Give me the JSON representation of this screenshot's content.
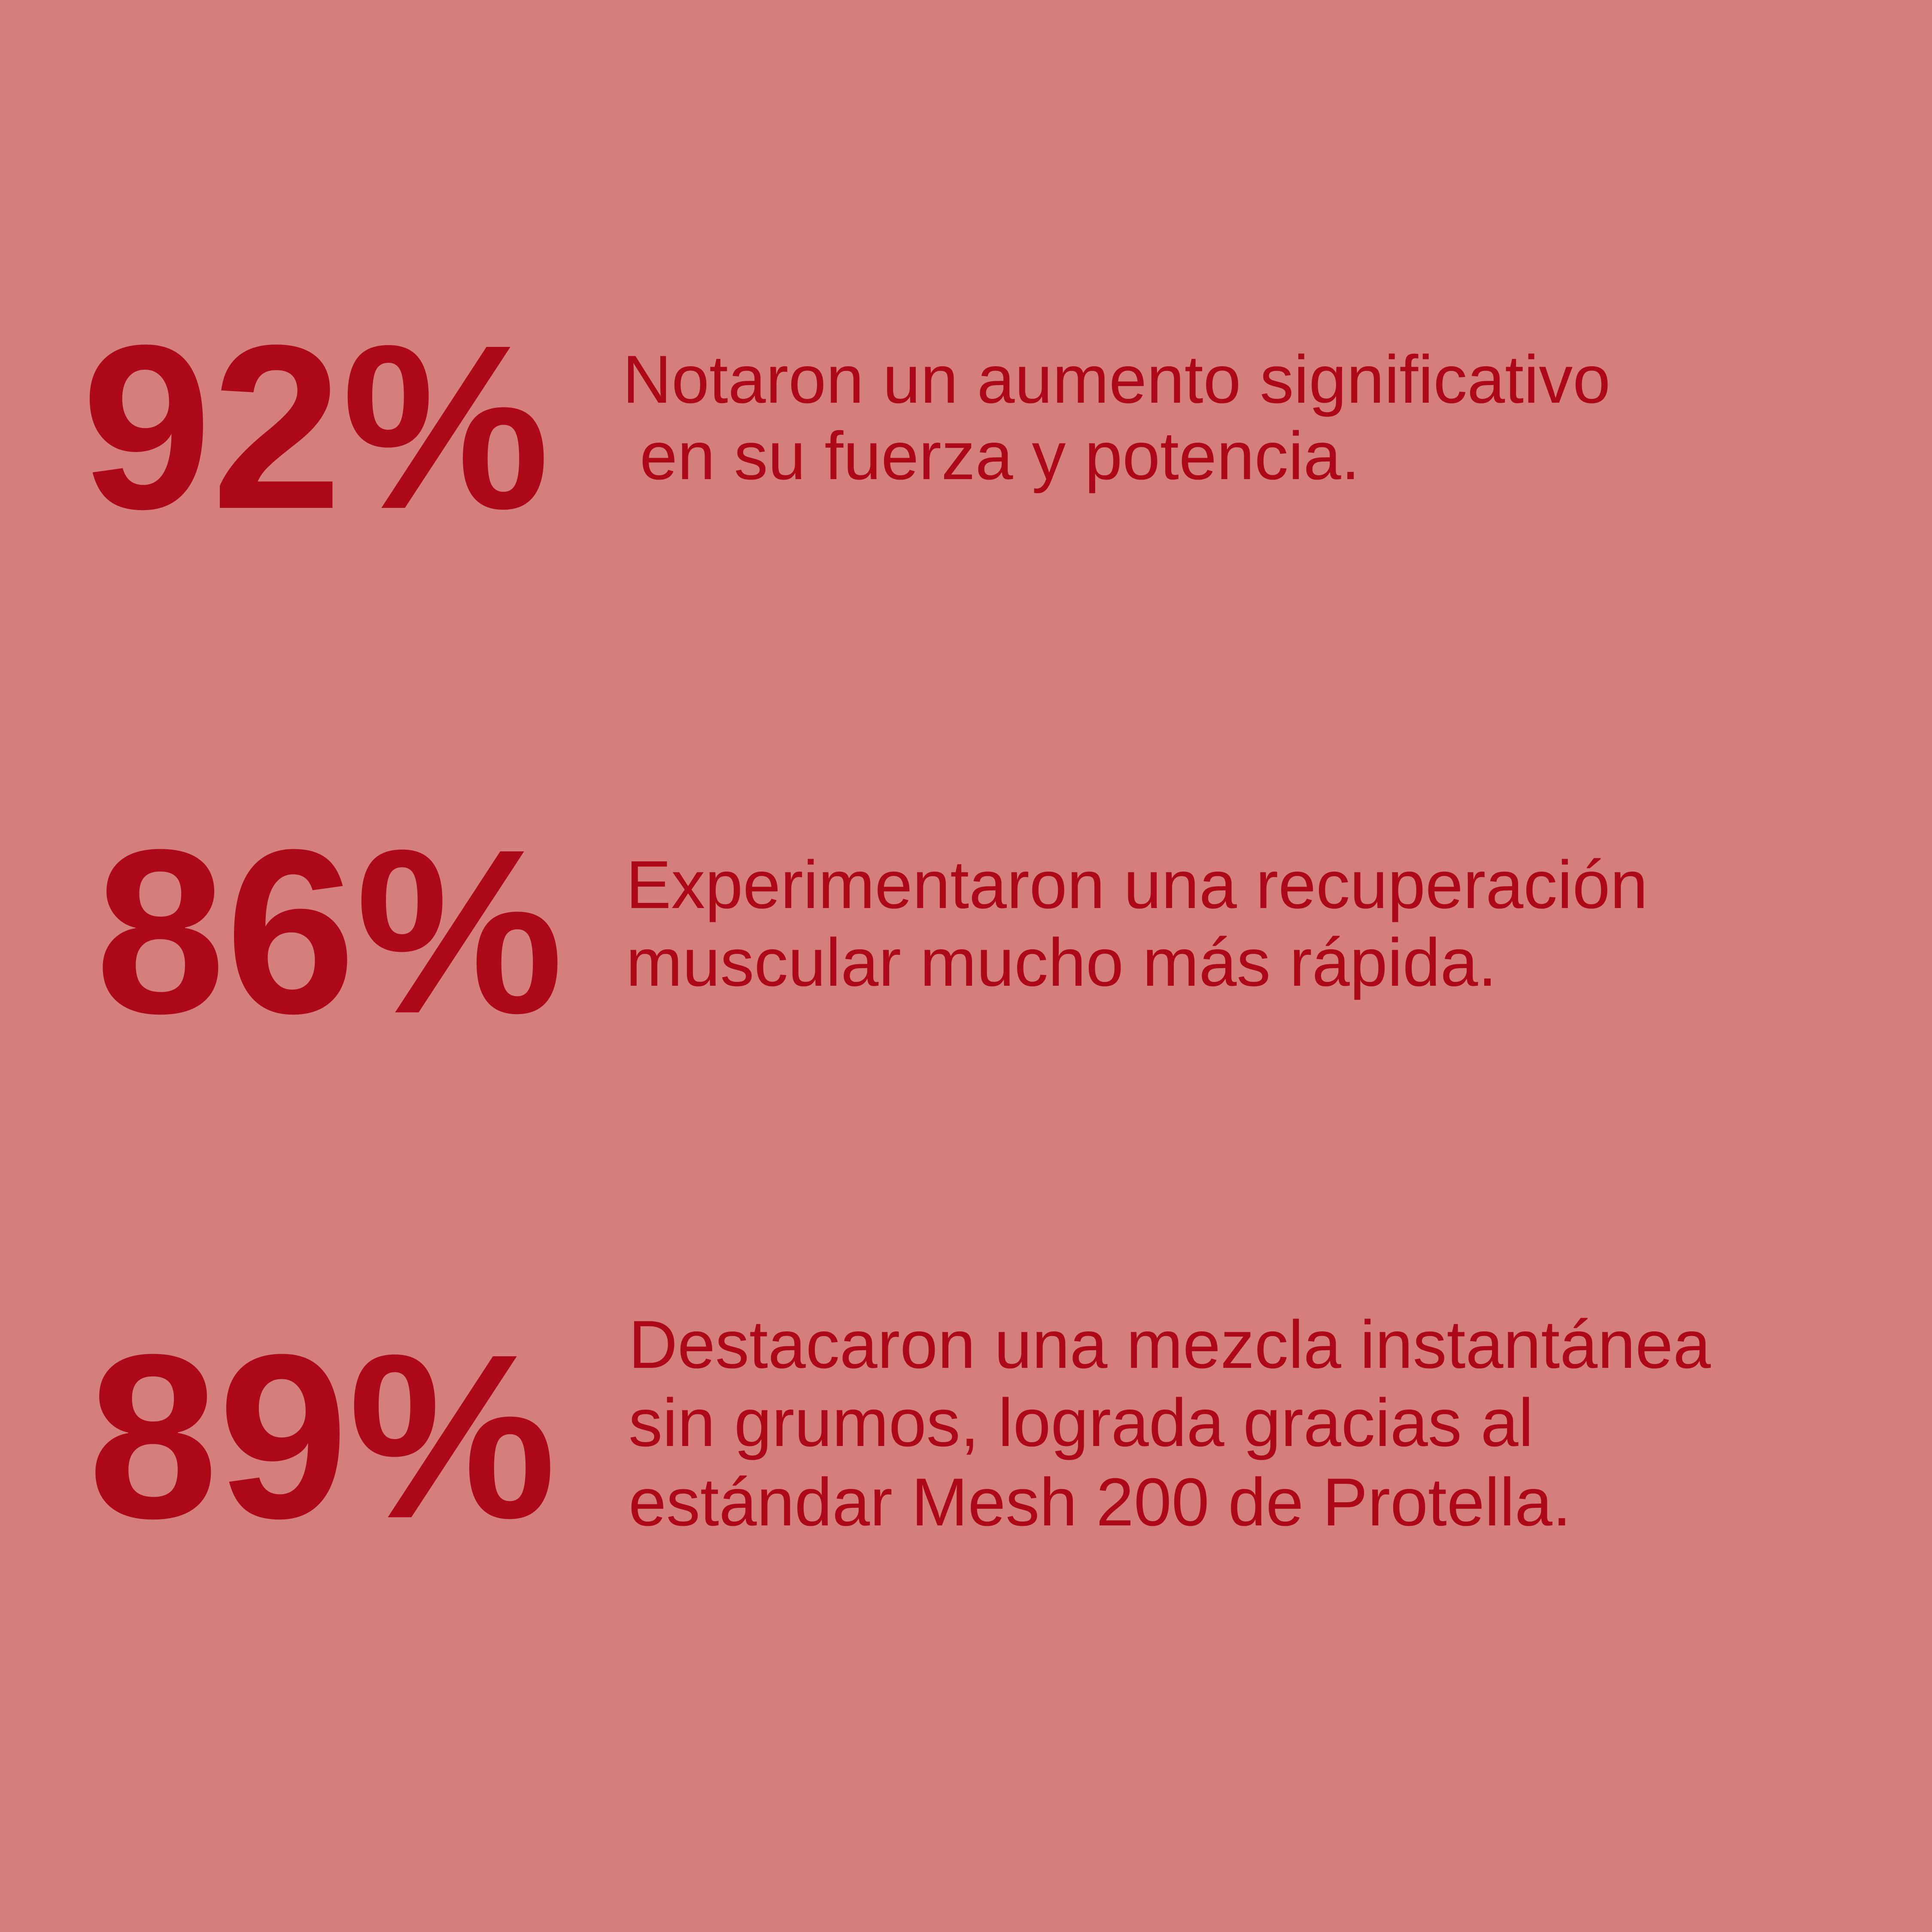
{
  "colors": {
    "background": "#d47f7c",
    "text": "#ad0918"
  },
  "stats": [
    {
      "value": "92%",
      "lines": [
        "Notaron un aumento significativo",
        "en su fuerza y potencia."
      ]
    },
    {
      "value": "86%",
      "lines": [
        "Experimentaron una recuperación",
        "muscular mucho más rápida."
      ]
    },
    {
      "value": "89%",
      "lines": [
        "Destacaron una mezcla instantánea",
        "sin grumos, lograda gracias al",
        "estándar Mesh 200 de Protella."
      ]
    }
  ]
}
